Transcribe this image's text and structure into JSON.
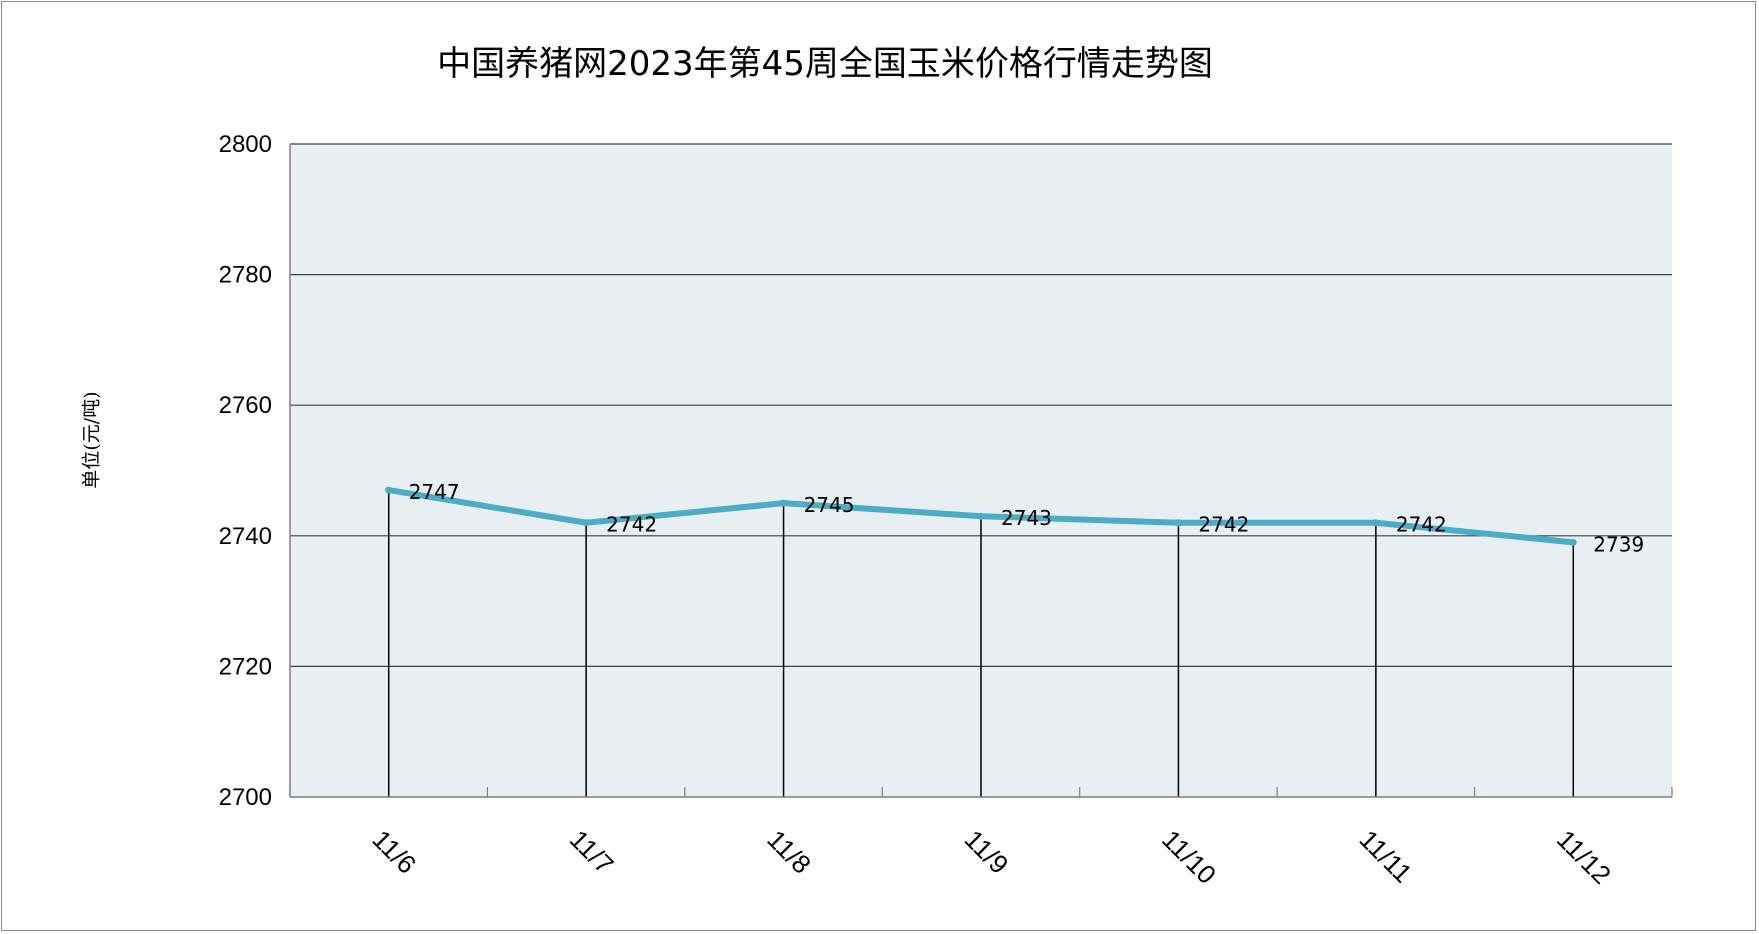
{
  "chart_data": {
    "type": "line",
    "title": "中国养猪网2023年第45周全国玉米价格行情走势图",
    "ylabel": "单位(元/吨)",
    "xlabel": "",
    "categories": [
      "11/6",
      "11/7",
      "11/8",
      "11/9",
      "11/10",
      "11/11",
      "11/12"
    ],
    "series": [
      {
        "values": [
          2747,
          2742,
          2745,
          2743,
          2742,
          2742,
          2739
        ]
      }
    ],
    "ylim": [
      2700,
      2800
    ],
    "yticks": [
      2700,
      2720,
      2740,
      2760,
      2780,
      2800
    ],
    "grid": true,
    "colors": {
      "line": "#4bacc6",
      "plot_bg": "#e8eff3",
      "grid": "#404040"
    }
  }
}
